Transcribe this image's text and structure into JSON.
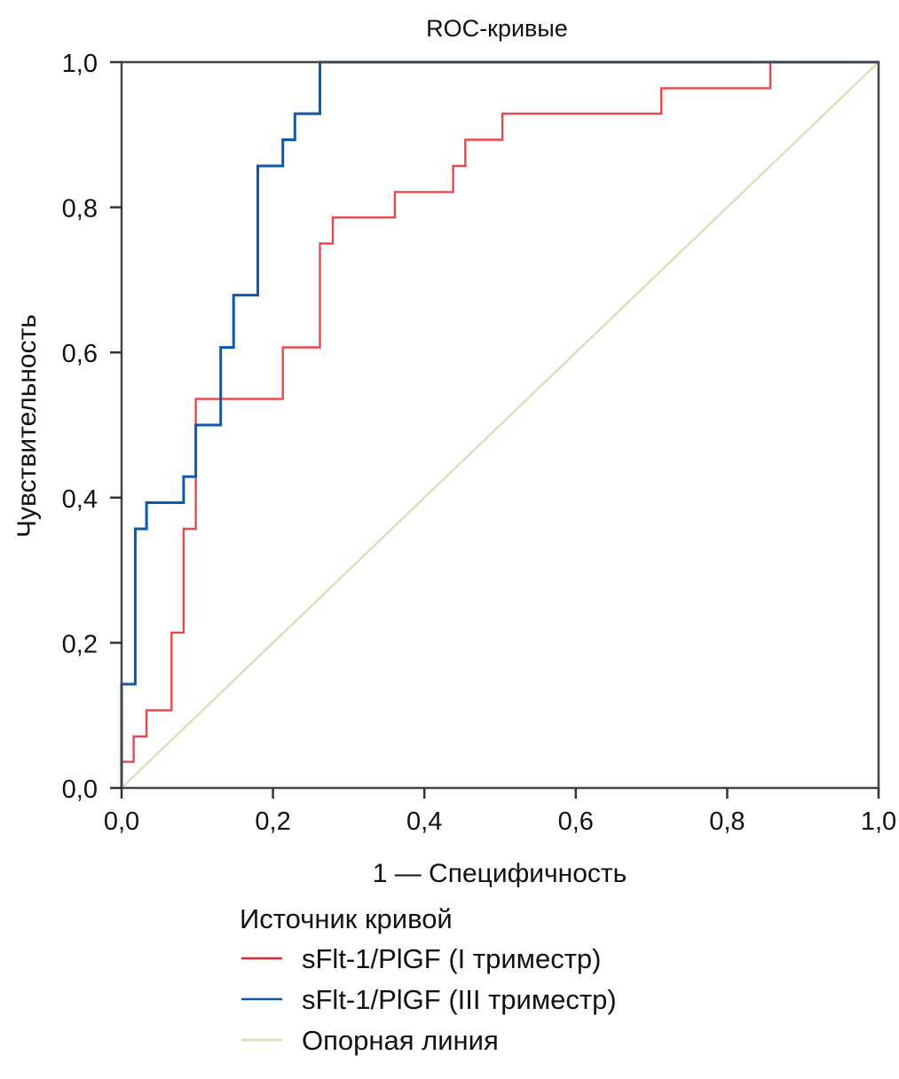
{
  "chart_data": {
    "type": "line",
    "title": "ROC-кривые",
    "xlabel": "1 — Специфичность",
    "ylabel": "Чувствительность",
    "xlim": [
      0,
      1
    ],
    "ylim": [
      0,
      1
    ],
    "grid": false,
    "x_ticks": [
      0,
      0.2,
      0.4,
      0.6,
      0.8,
      1.0
    ],
    "x_tick_labels": [
      "0,0",
      "0,2",
      "0,4",
      "0,6",
      "0,8",
      "1,0"
    ],
    "y_ticks": [
      0,
      0.2,
      0.4,
      0.6,
      0.8,
      1.0
    ],
    "y_tick_labels": [
      "0,0",
      "0,2",
      "0,4",
      "0,6",
      "0,8",
      "1,0"
    ],
    "legend": {
      "title": "Источник кривой",
      "placement": "bottom"
    },
    "series": [
      {
        "name": "sFlt-1/PlGF (I триместр)",
        "color": "#e8262b",
        "style": "step",
        "x": [
          0,
          0,
          0.016,
          0.016,
          0.033,
          0.033,
          0.066,
          0.066,
          0.082,
          0.082,
          0.098,
          0.098,
          0.213,
          0.213,
          0.262,
          0.262,
          0.279,
          0.279,
          0.361,
          0.361,
          0.438,
          0.438,
          0.454,
          0.454,
          0.503,
          0.503,
          0.713,
          0.713,
          0.857,
          0.857,
          1.0
        ],
        "y": [
          0,
          0.036,
          0.036,
          0.071,
          0.071,
          0.107,
          0.107,
          0.214,
          0.214,
          0.357,
          0.357,
          0.536,
          0.536,
          0.607,
          0.607,
          0.75,
          0.75,
          0.786,
          0.786,
          0.821,
          0.821,
          0.857,
          0.857,
          0.893,
          0.893,
          0.929,
          0.929,
          0.964,
          0.964,
          1.0,
          1.0
        ]
      },
      {
        "name": "sFlt-1/PlGF (III триместр)",
        "color": "#0b5aab",
        "style": "step",
        "x": [
          0,
          0,
          0.018,
          0.018,
          0.033,
          0.033,
          0.082,
          0.082,
          0.098,
          0.098,
          0.131,
          0.131,
          0.148,
          0.148,
          0.18,
          0.18,
          0.213,
          0.213,
          0.229,
          0.229,
          0.262,
          0.262,
          1.0
        ],
        "y": [
          0,
          0.143,
          0.143,
          0.357,
          0.357,
          0.393,
          0.393,
          0.429,
          0.429,
          0.5,
          0.5,
          0.607,
          0.607,
          0.679,
          0.679,
          0.857,
          0.857,
          0.893,
          0.893,
          0.929,
          0.929,
          1.0,
          1.0
        ]
      },
      {
        "name": "Опорная линия",
        "color": "#e0d9b4",
        "style": "line",
        "x": [
          0,
          1
        ],
        "y": [
          0,
          1
        ]
      }
    ]
  }
}
